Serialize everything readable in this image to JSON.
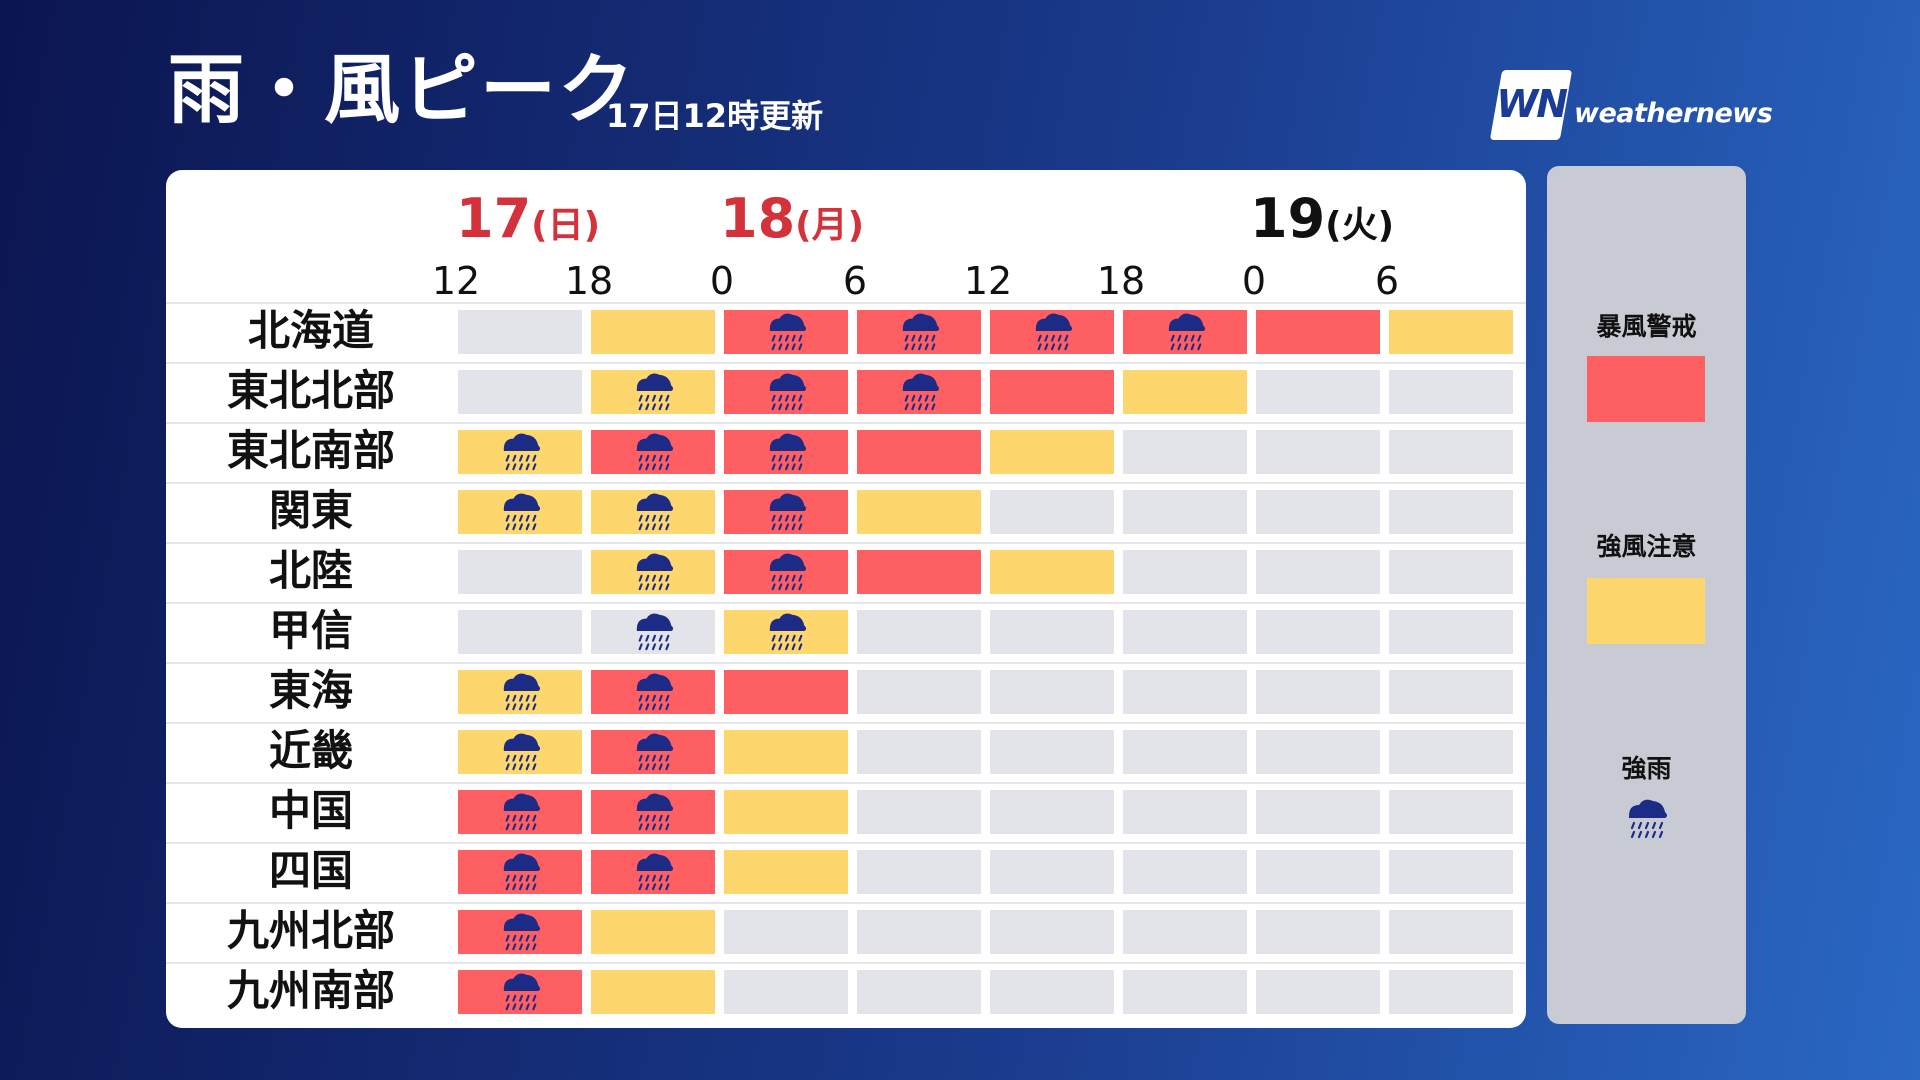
{
  "header": {
    "title": "雨・風ピーク",
    "subtitle": "17日12時更新",
    "logo_badge": "WN",
    "logo_text": "weathernews"
  },
  "days": [
    {
      "num": "17",
      "weekday": "(日)"
    },
    {
      "num": "18",
      "weekday": "(月)"
    },
    {
      "num": "19",
      "weekday": "(火)"
    }
  ],
  "hours": [
    "12",
    "18",
    "0",
    "6",
    "12",
    "18",
    "0",
    "6"
  ],
  "regions": [
    {
      "name": "北海道",
      "cells": [
        "none",
        "caution",
        "warn",
        "warn",
        "warn",
        "warn",
        "warn",
        "caution"
      ],
      "rain": [
        false,
        false,
        true,
        true,
        true,
        true,
        false,
        false
      ]
    },
    {
      "name": "東北北部",
      "cells": [
        "none",
        "caution",
        "warn",
        "warn",
        "warn",
        "caution",
        "none",
        "none"
      ],
      "rain": [
        false,
        true,
        true,
        true,
        false,
        false,
        false,
        false
      ]
    },
    {
      "name": "東北南部",
      "cells": [
        "caution",
        "warn",
        "warn",
        "warn",
        "caution",
        "none",
        "none",
        "none"
      ],
      "rain": [
        true,
        true,
        true,
        false,
        false,
        false,
        false,
        false
      ]
    },
    {
      "name": "関東",
      "cells": [
        "caution",
        "caution",
        "warn",
        "caution",
        "none",
        "none",
        "none",
        "none"
      ],
      "rain": [
        true,
        true,
        true,
        false,
        false,
        false,
        false,
        false
      ]
    },
    {
      "name": "北陸",
      "cells": [
        "none",
        "caution",
        "warn",
        "warn",
        "caution",
        "none",
        "none",
        "none"
      ],
      "rain": [
        false,
        true,
        true,
        false,
        false,
        false,
        false,
        false
      ]
    },
    {
      "name": "甲信",
      "cells": [
        "none",
        "none",
        "caution",
        "none",
        "none",
        "none",
        "none",
        "none"
      ],
      "rain": [
        false,
        true,
        true,
        false,
        false,
        false,
        false,
        false
      ]
    },
    {
      "name": "東海",
      "cells": [
        "caution",
        "warn",
        "warn",
        "none",
        "none",
        "none",
        "none",
        "none"
      ],
      "rain": [
        true,
        true,
        false,
        false,
        false,
        false,
        false,
        false
      ]
    },
    {
      "name": "近畿",
      "cells": [
        "caution",
        "warn",
        "caution",
        "none",
        "none",
        "none",
        "none",
        "none"
      ],
      "rain": [
        true,
        true,
        false,
        false,
        false,
        false,
        false,
        false
      ]
    },
    {
      "name": "中国",
      "cells": [
        "warn",
        "warn",
        "caution",
        "none",
        "none",
        "none",
        "none",
        "none"
      ],
      "rain": [
        true,
        true,
        false,
        false,
        false,
        false,
        false,
        false
      ]
    },
    {
      "name": "四国",
      "cells": [
        "warn",
        "warn",
        "caution",
        "none",
        "none",
        "none",
        "none",
        "none"
      ],
      "rain": [
        true,
        true,
        false,
        false,
        false,
        false,
        false,
        false
      ]
    },
    {
      "name": "九州北部",
      "cells": [
        "warn",
        "caution",
        "none",
        "none",
        "none",
        "none",
        "none",
        "none"
      ],
      "rain": [
        true,
        false,
        false,
        false,
        false,
        false,
        false,
        false
      ]
    },
    {
      "name": "九州南部",
      "cells": [
        "warn",
        "caution",
        "none",
        "none",
        "none",
        "none",
        "none",
        "none"
      ],
      "rain": [
        true,
        false,
        false,
        false,
        false,
        false,
        false,
        false
      ]
    }
  ],
  "legend": {
    "warn_label": "暴風警戒",
    "caution_label": "強風注意",
    "rain_label": "強雨"
  },
  "colors": {
    "warn": "#fe5f63",
    "caution": "#fed66e",
    "none": "#e2e4ea",
    "rain_icon": "#1c2c86"
  }
}
